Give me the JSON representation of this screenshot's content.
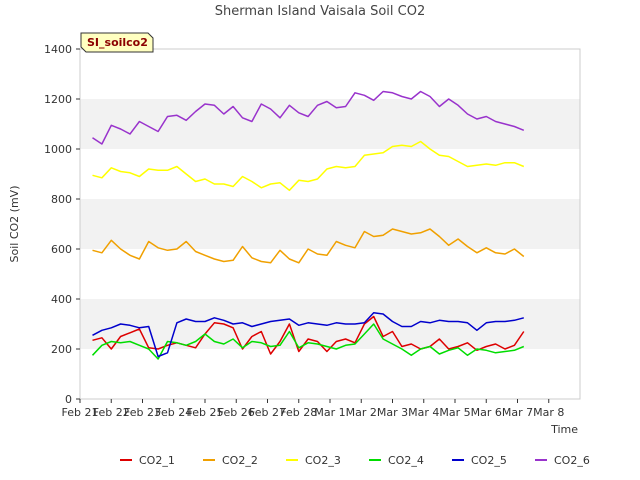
{
  "chart_data": {
    "type": "line",
    "title": "Sherman Island Vaisala Soil CO2",
    "badge": "SI_soilco2",
    "xlabel": "Time",
    "ylabel": "Soil CO2 (mV)",
    "ylim": [
      0,
      1400
    ],
    "yticks": [
      0,
      200,
      400,
      600,
      800,
      1000,
      1200,
      1400
    ],
    "xlim": [
      21,
      37
    ],
    "xticks": [
      {
        "x": 21,
        "label": "Feb 21"
      },
      {
        "x": 22,
        "label": "Feb 22"
      },
      {
        "x": 23,
        "label": "Feb 23"
      },
      {
        "x": 24,
        "label": "Feb 24"
      },
      {
        "x": 25,
        "label": "Feb 25"
      },
      {
        "x": 26,
        "label": "Feb 26"
      },
      {
        "x": 27,
        "label": "Feb 27"
      },
      {
        "x": 28,
        "label": "Feb 28"
      },
      {
        "x": 29,
        "label": "Mar 1"
      },
      {
        "x": 30,
        "label": "Mar 2"
      },
      {
        "x": 31,
        "label": "Mar 3"
      },
      {
        "x": 32,
        "label": "Mar 4"
      },
      {
        "x": 33,
        "label": "Mar 5"
      },
      {
        "x": 34,
        "label": "Mar 6"
      },
      {
        "x": 35,
        "label": "Mar 7"
      },
      {
        "x": 36,
        "label": "Mar 8"
      }
    ],
    "grid": "horizontal bands",
    "legend_position": "bottom",
    "series": [
      {
        "name": "CO2_1",
        "color": "#dd0000",
        "x": [
          21.4,
          21.7,
          22.0,
          22.3,
          22.6,
          22.9,
          23.2,
          23.5,
          23.8,
          24.1,
          24.4,
          24.7,
          25.0,
          25.3,
          25.6,
          25.9,
          26.2,
          26.5,
          26.8,
          27.1,
          27.4,
          27.7,
          28.0,
          28.3,
          28.6,
          28.9,
          29.2,
          29.5,
          29.8,
          30.1,
          30.4,
          30.7,
          31.0,
          31.3,
          31.6,
          31.9,
          32.2,
          32.5,
          32.8,
          33.1,
          33.4,
          33.7,
          34.0,
          34.3,
          34.6,
          34.9,
          35.2
        ],
        "y": [
          235,
          245,
          200,
          250,
          265,
          280,
          205,
          200,
          215,
          225,
          215,
          205,
          260,
          305,
          300,
          285,
          200,
          250,
          270,
          180,
          230,
          300,
          190,
          240,
          230,
          190,
          230,
          240,
          225,
          300,
          330,
          250,
          270,
          210,
          220,
          200,
          210,
          240,
          200,
          210,
          225,
          195,
          210,
          220,
          200,
          215,
          270
        ]
      },
      {
        "name": "CO2_2",
        "color": "#f0a000",
        "x": [
          21.4,
          21.7,
          22.0,
          22.3,
          22.6,
          22.9,
          23.2,
          23.5,
          23.8,
          24.1,
          24.4,
          24.7,
          25.0,
          25.3,
          25.6,
          25.9,
          26.2,
          26.5,
          26.8,
          27.1,
          27.4,
          27.7,
          28.0,
          28.3,
          28.6,
          28.9,
          29.2,
          29.5,
          29.8,
          30.1,
          30.4,
          30.7,
          31.0,
          31.3,
          31.6,
          31.9,
          32.2,
          32.5,
          32.8,
          33.1,
          33.4,
          33.7,
          34.0,
          34.3,
          34.6,
          34.9,
          35.2
        ],
        "y": [
          595,
          585,
          635,
          600,
          575,
          560,
          630,
          605,
          595,
          600,
          630,
          590,
          575,
          560,
          550,
          555,
          610,
          565,
          550,
          545,
          595,
          560,
          545,
          600,
          580,
          575,
          630,
          615,
          605,
          670,
          650,
          655,
          680,
          670,
          660,
          665,
          680,
          650,
          615,
          640,
          610,
          585,
          605,
          585,
          580,
          600,
          570
        ]
      },
      {
        "name": "CO2_3",
        "color": "#ffff00",
        "x": [
          21.4,
          21.7,
          22.0,
          22.3,
          22.6,
          22.9,
          23.2,
          23.5,
          23.8,
          24.1,
          24.4,
          24.7,
          25.0,
          25.3,
          25.6,
          25.9,
          26.2,
          26.5,
          26.8,
          27.1,
          27.4,
          27.7,
          28.0,
          28.3,
          28.6,
          28.9,
          29.2,
          29.5,
          29.8,
          30.1,
          30.4,
          30.7,
          31.0,
          31.3,
          31.6,
          31.9,
          32.2,
          32.5,
          32.8,
          33.1,
          33.4,
          33.7,
          34.0,
          34.3,
          34.6,
          34.9,
          35.2
        ],
        "y": [
          895,
          885,
          925,
          910,
          905,
          890,
          920,
          915,
          915,
          930,
          900,
          870,
          880,
          860,
          860,
          850,
          890,
          870,
          845,
          860,
          865,
          835,
          875,
          870,
          880,
          920,
          930,
          925,
          930,
          975,
          980,
          985,
          1010,
          1015,
          1010,
          1030,
          1000,
          975,
          970,
          950,
          930,
          935,
          940,
          935,
          945,
          945,
          930
        ]
      },
      {
        "name": "CO2_4",
        "color": "#00dd00",
        "x": [
          21.4,
          21.7,
          22.0,
          22.3,
          22.6,
          22.9,
          23.2,
          23.5,
          23.8,
          24.1,
          24.4,
          24.7,
          25.0,
          25.3,
          25.6,
          25.9,
          26.2,
          26.5,
          26.8,
          27.1,
          27.4,
          27.7,
          28.0,
          28.3,
          28.6,
          28.9,
          29.2,
          29.5,
          29.8,
          30.1,
          30.4,
          30.7,
          31.0,
          31.3,
          31.6,
          31.9,
          32.2,
          32.5,
          32.8,
          33.1,
          33.4,
          33.7,
          34.0,
          34.3,
          34.6,
          34.9,
          35.2
        ],
        "y": [
          175,
          215,
          230,
          225,
          230,
          215,
          200,
          160,
          230,
          225,
          215,
          230,
          260,
          230,
          220,
          240,
          205,
          230,
          225,
          210,
          215,
          270,
          205,
          225,
          220,
          210,
          200,
          215,
          220,
          260,
          300,
          240,
          220,
          200,
          175,
          200,
          210,
          180,
          195,
          205,
          175,
          200,
          195,
          185,
          190,
          195,
          210
        ]
      },
      {
        "name": "CO2_5",
        "color": "#0000cc",
        "x": [
          21.4,
          21.7,
          22.0,
          22.3,
          22.6,
          22.9,
          23.2,
          23.5,
          23.8,
          24.1,
          24.4,
          24.7,
          25.0,
          25.3,
          25.6,
          25.9,
          26.2,
          26.5,
          26.8,
          27.1,
          27.4,
          27.7,
          28.0,
          28.3,
          28.6,
          28.9,
          29.2,
          29.5,
          29.8,
          30.1,
          30.4,
          30.7,
          31.0,
          31.3,
          31.6,
          31.9,
          32.2,
          32.5,
          32.8,
          33.1,
          33.4,
          33.7,
          34.0,
          34.3,
          34.6,
          34.9,
          35.2
        ],
        "y": [
          255,
          275,
          285,
          300,
          295,
          285,
          290,
          170,
          185,
          305,
          320,
          310,
          310,
          325,
          315,
          300,
          305,
          290,
          300,
          310,
          315,
          320,
          295,
          305,
          300,
          295,
          305,
          300,
          300,
          305,
          345,
          340,
          310,
          290,
          290,
          310,
          305,
          315,
          310,
          310,
          305,
          275,
          305,
          310,
          310,
          315,
          325
        ]
      },
      {
        "name": "CO2_6",
        "color": "#9933cc",
        "x": [
          21.4,
          21.7,
          22.0,
          22.3,
          22.6,
          22.9,
          23.2,
          23.5,
          23.8,
          24.1,
          24.4,
          24.7,
          25.0,
          25.3,
          25.6,
          25.9,
          26.2,
          26.5,
          26.8,
          27.1,
          27.4,
          27.7,
          28.0,
          28.3,
          28.6,
          28.9,
          29.2,
          29.5,
          29.8,
          30.1,
          30.4,
          30.7,
          31.0,
          31.3,
          31.6,
          31.9,
          32.2,
          32.5,
          32.8,
          33.1,
          33.4,
          33.7,
          34.0,
          34.3,
          34.6,
          34.9,
          35.2
        ],
        "y": [
          1045,
          1020,
          1095,
          1080,
          1060,
          1110,
          1090,
          1070,
          1130,
          1135,
          1115,
          1150,
          1180,
          1175,
          1140,
          1170,
          1125,
          1110,
          1180,
          1160,
          1125,
          1175,
          1145,
          1130,
          1175,
          1190,
          1165,
          1170,
          1225,
          1215,
          1195,
          1230,
          1225,
          1210,
          1200,
          1230,
          1210,
          1170,
          1200,
          1175,
          1140,
          1120,
          1130,
          1110,
          1100,
          1090,
          1075
        ]
      }
    ]
  }
}
